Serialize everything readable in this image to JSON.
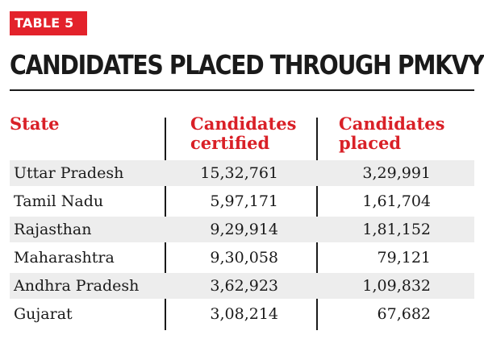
{
  "tag": "TABLE 5",
  "title": "CANDIDATES PLACED THROUGH PMKVY",
  "chart_data": {
    "type": "table",
    "columns": [
      [
        "State"
      ],
      [
        "Candidates",
        "certified"
      ],
      [
        "Candidates",
        "placed"
      ]
    ],
    "rows": [
      [
        "Uttar Pradesh",
        "15,32,761",
        "3,29,991"
      ],
      [
        "Tamil Nadu",
        "5,97,171",
        "1,61,704"
      ],
      [
        "Rajasthan",
        "9,29,914",
        "1,81,152"
      ],
      [
        "Maharashtra",
        "9,30,058",
        "79,121"
      ],
      [
        "Andhra Pradesh",
        "3,62,923",
        "1,09,832"
      ],
      [
        "Gujarat",
        "3,08,214",
        "67,682"
      ]
    ]
  },
  "colors": {
    "accent": "#e3222b",
    "header_text": "#d92027",
    "row_shade": "#ededed",
    "text": "#1a1a1a"
  }
}
